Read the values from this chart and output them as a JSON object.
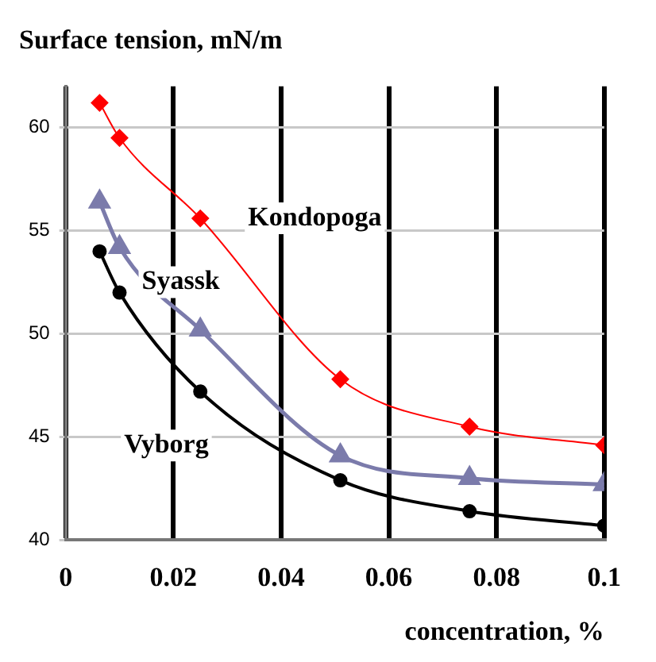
{
  "chart_data": {
    "type": "line",
    "ylabel": "Surface tension, mN/m",
    "xlabel": "concentration, %",
    "x": [
      0.0063,
      0.01,
      0.025,
      0.051,
      0.075,
      0.1
    ],
    "series": [
      {
        "name": "Kondopoga",
        "color": "#ff0000",
        "marker": "diamond",
        "values": [
          61.2,
          59.5,
          55.6,
          47.8,
          45.5,
          44.6
        ]
      },
      {
        "name": "Syassk",
        "color": "#7b7bab",
        "marker": "triangle",
        "values": [
          56.4,
          54.2,
          50.2,
          44.1,
          43.0,
          42.7
        ]
      },
      {
        "name": "Vyborg",
        "color": "#000000",
        "marker": "circle",
        "values": [
          54.0,
          52.0,
          47.2,
          42.9,
          41.4,
          40.7
        ]
      }
    ],
    "xlim": [
      0,
      0.1
    ],
    "xticks": [
      0,
      0.02,
      0.04,
      0.06,
      0.08,
      0.1
    ],
    "ylim": [
      40,
      62
    ],
    "yticks": [
      40,
      45,
      50,
      55,
      60
    ],
    "grid": true,
    "legend": false
  }
}
